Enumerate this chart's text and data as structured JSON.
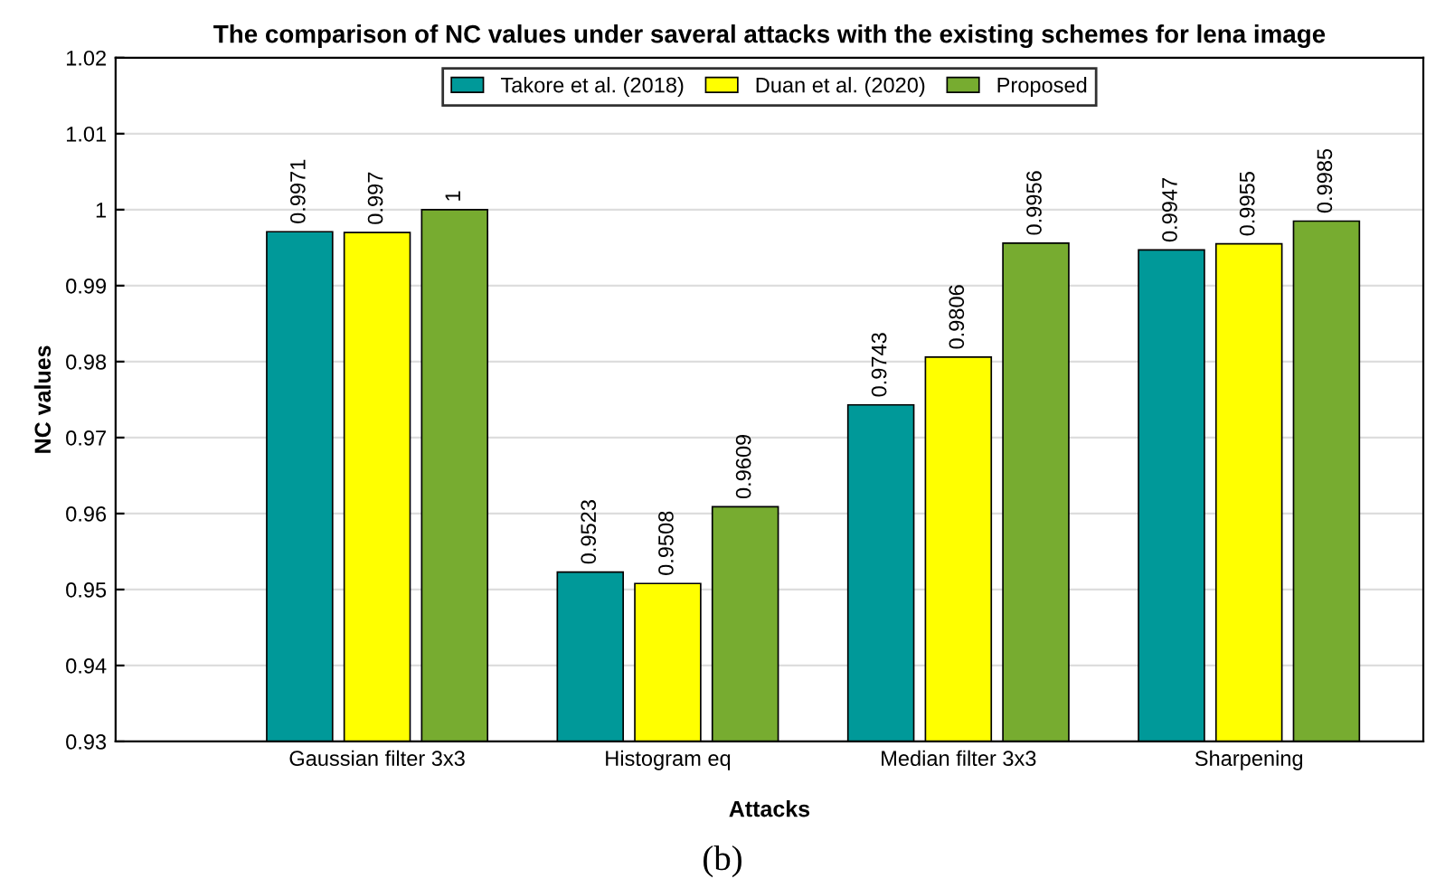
{
  "chart_data": {
    "type": "bar",
    "title": "The comparison of NC values under saveral attacks with the existing schemes for lena image",
    "xlabel": "Attacks",
    "ylabel": "NC values",
    "categories": [
      "Gaussian filter 3x3",
      "Histogram eq",
      "Median filter 3x3",
      "Sharpening"
    ],
    "series": [
      {
        "name": "Takore et al. (2018)",
        "color": "#009999",
        "values": [
          0.9971,
          0.9523,
          0.9743,
          0.9947
        ]
      },
      {
        "name": "Duan et al. (2020)",
        "color": "#ffff00",
        "values": [
          0.997,
          0.9508,
          0.9806,
          0.9955
        ]
      },
      {
        "name": "Proposed",
        "color": "#77ac30",
        "values": [
          1,
          0.9609,
          0.9956,
          0.9985
        ]
      }
    ],
    "ylim": [
      0.93,
      1.02
    ],
    "yticks": [
      0.93,
      0.94,
      0.95,
      0.96,
      0.97,
      0.98,
      0.99,
      1,
      1.01,
      1.02
    ],
    "grid": "y",
    "legend": "top",
    "data_labels": true,
    "annotations": [
      "(b)"
    ]
  }
}
